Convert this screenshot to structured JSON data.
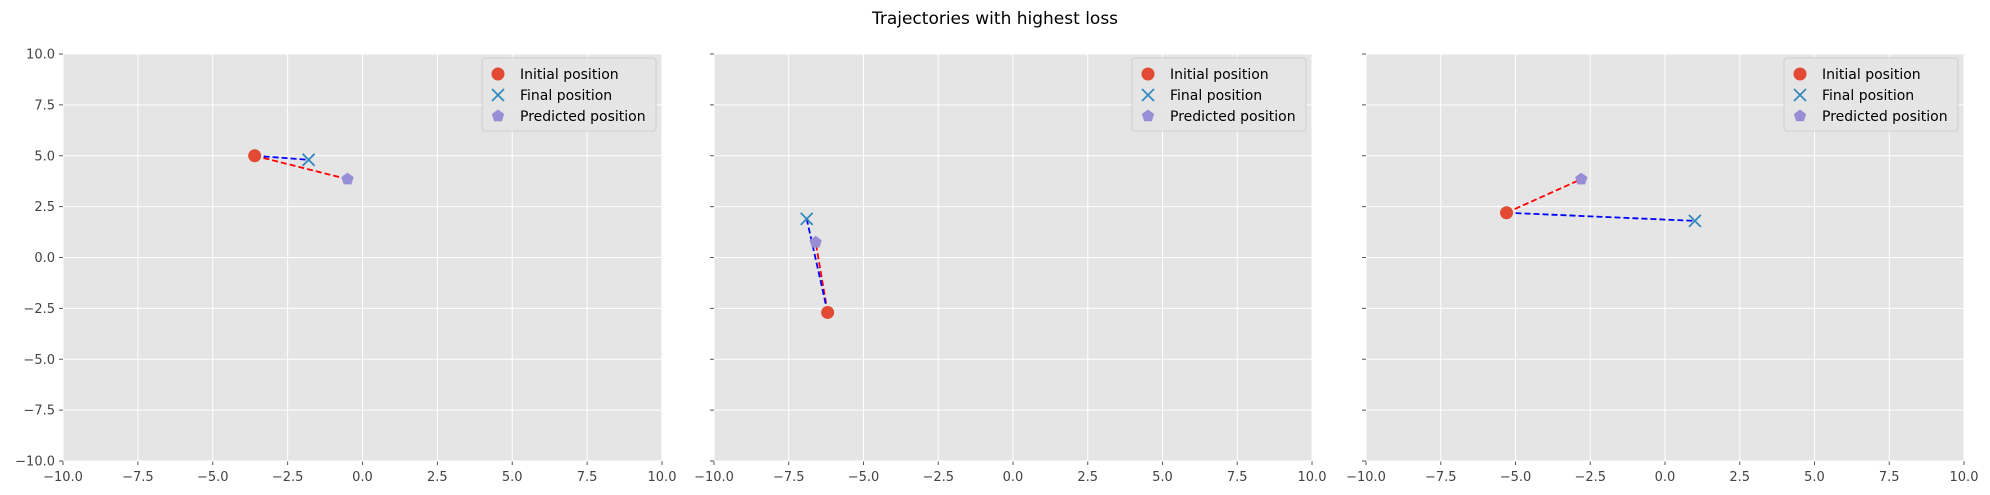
{
  "figure": {
    "title": "Trajectories with highest loss"
  },
  "colors": {
    "axes_bg": "#E5E5E5",
    "grid": "#FFFFFF",
    "initial": "#E24A33",
    "final": "#348ABD",
    "predicted": "#988ED5",
    "dash_red": "#FF0000",
    "dash_blue": "#0000FF",
    "tick": "#555555"
  },
  "legend_labels": [
    "Initial position",
    "Final position",
    "Predicted position"
  ],
  "chart_data": [
    {
      "type": "scatter",
      "title": "",
      "xlabel": "",
      "ylabel": "",
      "xlim": [
        -10,
        10
      ],
      "ylim": [
        -10,
        10
      ],
      "xticks": [
        "−10.0",
        "−7.5",
        "−5.0",
        "−2.5",
        "0.0",
        "2.5",
        "5.0",
        "7.5",
        "10.0"
      ],
      "yticks": [
        "10.0",
        "7.5",
        "5.0",
        "2.5",
        "0.0",
        "−2.5",
        "−5.0",
        "−7.5",
        "−10.0"
      ],
      "show_yticklabels": true,
      "legend": "top-right",
      "initial": [
        -3.6,
        5.0
      ],
      "final": [
        -1.8,
        4.8
      ],
      "predicted": [
        -0.5,
        3.85
      ]
    },
    {
      "type": "scatter",
      "title": "",
      "xlabel": "",
      "ylabel": "",
      "xlim": [
        -10,
        10
      ],
      "ylim": [
        -10,
        10
      ],
      "xticks": [
        "−10.0",
        "−7.5",
        "−5.0",
        "−2.5",
        "0.0",
        "2.5",
        "5.0",
        "7.5",
        "10.0"
      ],
      "yticks": [],
      "show_yticklabels": false,
      "legend": "top-right",
      "initial": [
        -6.2,
        -2.7
      ],
      "final": [
        -6.9,
        1.9
      ],
      "predicted": [
        -6.6,
        0.75
      ]
    },
    {
      "type": "scatter",
      "title": "",
      "xlabel": "",
      "ylabel": "",
      "xlim": [
        -10,
        10
      ],
      "ylim": [
        -10,
        10
      ],
      "xticks": [
        "−10.0",
        "−7.5",
        "−5.0",
        "−2.5",
        "0.0",
        "2.5",
        "5.0",
        "7.5",
        "10.0"
      ],
      "yticks": [],
      "show_yticklabels": false,
      "legend": "top-right",
      "initial": [
        -5.3,
        2.2
      ],
      "final": [
        1.0,
        1.8
      ],
      "predicted": [
        -2.8,
        3.85
      ]
    }
  ]
}
